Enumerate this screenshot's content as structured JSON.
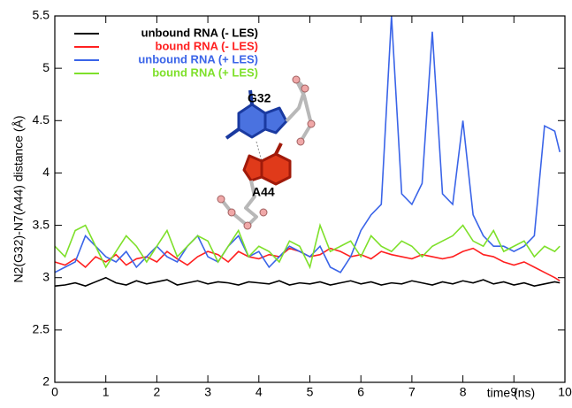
{
  "chart_data": {
    "type": "line",
    "ylabel": "N2(G32)-N7(A44) distance (Å)",
    "xlabel": "time (ns)",
    "annotations": [
      "G32",
      "A44"
    ],
    "x": [
      0,
      0.2,
      0.4,
      0.6,
      0.8,
      1,
      1.2,
      1.4,
      1.6,
      1.8,
      2,
      2.2,
      2.4,
      2.6,
      2.8,
      3,
      3.2,
      3.4,
      3.6,
      3.8,
      4,
      4.2,
      4.4,
      4.6,
      4.8,
      5,
      5.2,
      5.4,
      5.6,
      5.8,
      6,
      6.2,
      6.4,
      6.6,
      6.8,
      7,
      7.2,
      7.4,
      7.6,
      7.8,
      8,
      8.2,
      8.4,
      8.6,
      8.8,
      9,
      9.2,
      9.4,
      9.6,
      9.8,
      9.9
    ],
    "series": [
      {
        "name": "unbound RNA (- LES)",
        "color": "#000000",
        "values": [
          2.92,
          2.93,
          2.95,
          2.92,
          2.96,
          3.0,
          2.95,
          2.93,
          2.97,
          2.94,
          2.96,
          2.98,
          2.93,
          2.95,
          2.97,
          2.94,
          2.96,
          2.95,
          2.93,
          2.96,
          2.95,
          2.94,
          2.97,
          2.93,
          2.95,
          2.94,
          2.96,
          2.93,
          2.95,
          2.97,
          2.94,
          2.96,
          2.93,
          2.95,
          2.94,
          2.97,
          2.95,
          2.93,
          2.96,
          2.94,
          2.97,
          2.95,
          2.98,
          2.94,
          2.96,
          2.93,
          2.95,
          2.92,
          2.94,
          2.96,
          2.95
        ]
      },
      {
        "name": "bound RNA (- LES)",
        "color": "#ff2020",
        "values": [
          3.15,
          3.12,
          3.18,
          3.1,
          3.2,
          3.15,
          3.22,
          3.12,
          3.18,
          3.2,
          3.15,
          3.25,
          3.18,
          3.12,
          3.2,
          3.25,
          3.22,
          3.15,
          3.25,
          3.2,
          3.18,
          3.22,
          3.2,
          3.28,
          3.25,
          3.2,
          3.22,
          3.28,
          3.25,
          3.2,
          3.22,
          3.18,
          3.25,
          3.22,
          3.2,
          3.18,
          3.22,
          3.2,
          3.18,
          3.2,
          3.25,
          3.28,
          3.22,
          3.2,
          3.15,
          3.12,
          3.15,
          3.1,
          3.05,
          3.0,
          2.97
        ]
      },
      {
        "name": "unbound RNA (+ LES)",
        "color": "#3a64e8",
        "values": [
          3.05,
          3.1,
          3.15,
          3.4,
          3.3,
          3.2,
          3.15,
          3.25,
          3.1,
          3.2,
          3.3,
          3.2,
          3.15,
          3.3,
          3.4,
          3.2,
          3.15,
          3.3,
          3.4,
          3.2,
          3.25,
          3.1,
          3.2,
          3.3,
          3.25,
          3.2,
          3.3,
          3.1,
          3.05,
          3.2,
          3.45,
          3.6,
          3.7,
          5.5,
          3.8,
          3.7,
          3.9,
          5.35,
          3.8,
          3.7,
          4.5,
          3.6,
          3.4,
          3.3,
          3.3,
          3.25,
          3.3,
          3.4,
          4.45,
          4.4,
          4.2
        ]
      },
      {
        "name": "bound RNA (+ LES)",
        "color": "#7ee02a",
        "values": [
          3.3,
          3.2,
          3.45,
          3.5,
          3.3,
          3.1,
          3.25,
          3.4,
          3.3,
          3.15,
          3.3,
          3.45,
          3.2,
          3.3,
          3.4,
          3.35,
          3.15,
          3.3,
          3.45,
          3.2,
          3.3,
          3.25,
          3.15,
          3.35,
          3.3,
          3.1,
          3.5,
          3.25,
          3.3,
          3.35,
          3.2,
          3.4,
          3.3,
          3.25,
          3.35,
          3.3,
          3.2,
          3.3,
          3.35,
          3.4,
          3.5,
          3.35,
          3.3,
          3.45,
          3.25,
          3.3,
          3.35,
          3.2,
          3.3,
          3.25,
          3.3
        ]
      }
    ],
    "xlim": [
      0,
      10
    ],
    "ylim": [
      2,
      5.5
    ],
    "xticks": [
      0,
      1,
      2,
      3,
      4,
      5,
      6,
      7,
      8,
      9,
      10
    ],
    "yticks": [
      2,
      2.5,
      3,
      3.5,
      4,
      4.5,
      5,
      5.5
    ]
  }
}
